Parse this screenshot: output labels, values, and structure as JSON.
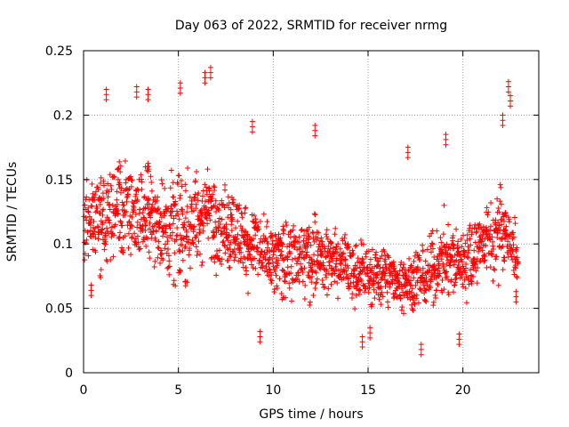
{
  "colors": {
    "points": "#ff0000",
    "axis": "#000000",
    "grid": "#a0a0a0"
  },
  "chart_data": {
    "type": "scatter",
    "marker": "plus",
    "title": "Day 063 of 2022, SRMTID for receiver nrmg",
    "xlabel": "GPS time / hours",
    "ylabel": "SRMTID / TECUs",
    "xlim": [
      0,
      24
    ],
    "ylim": [
      0,
      0.25
    ],
    "x_ticks": [
      0,
      5,
      10,
      15,
      20
    ],
    "x_tick_labels": [
      "0",
      "5",
      "10",
      "15",
      "20"
    ],
    "y_ticks": [
      0,
      0.05,
      0.1,
      0.15,
      0.2,
      0.25
    ],
    "y_tick_labels": [
      "0",
      "0.05",
      "0.1",
      "0.15",
      "0.2",
      "0.25"
    ],
    "grid": true,
    "legend": "none",
    "series": [
      {
        "name": "SRMTID",
        "envelope_hours": [
          0,
          1,
          2,
          3,
          4,
          5,
          6,
          7,
          8,
          9,
          10,
          11,
          12,
          13,
          14,
          15,
          16,
          17,
          18,
          19,
          20,
          21,
          22,
          22.9
        ],
        "envelope_center": [
          0.118,
          0.12,
          0.128,
          0.125,
          0.115,
          0.11,
          0.12,
          0.12,
          0.11,
          0.1,
          0.085,
          0.088,
          0.09,
          0.088,
          0.082,
          0.075,
          0.075,
          0.072,
          0.075,
          0.09,
          0.085,
          0.1,
          0.11,
          0.09
        ],
        "envelope_spread": [
          0.035,
          0.04,
          0.045,
          0.045,
          0.04,
          0.045,
          0.045,
          0.04,
          0.035,
          0.035,
          0.03,
          0.03,
          0.032,
          0.03,
          0.028,
          0.025,
          0.025,
          0.025,
          0.025,
          0.035,
          0.03,
          0.03,
          0.04,
          0.02
        ],
        "highlights": [
          {
            "x": 1.2,
            "y": 0.22
          },
          {
            "x": 2.8,
            "y": 0.222
          },
          {
            "x": 3.4,
            "y": 0.22
          },
          {
            "x": 5.1,
            "y": 0.225
          },
          {
            "x": 6.4,
            "y": 0.233
          },
          {
            "x": 6.7,
            "y": 0.237
          },
          {
            "x": 8.9,
            "y": 0.195
          },
          {
            "x": 12.2,
            "y": 0.192
          },
          {
            "x": 17.1,
            "y": 0.175
          },
          {
            "x": 19.1,
            "y": 0.185
          },
          {
            "x": 22.1,
            "y": 0.2
          },
          {
            "x": 22.4,
            "y": 0.226
          },
          {
            "x": 22.5,
            "y": 0.215
          },
          {
            "x": 9.3,
            "y": 0.032
          },
          {
            "x": 14.7,
            "y": 0.028
          },
          {
            "x": 15.1,
            "y": 0.035
          },
          {
            "x": 17.8,
            "y": 0.022
          },
          {
            "x": 19.8,
            "y": 0.03
          },
          {
            "x": 0.4,
            "y": 0.068
          },
          {
            "x": 22.8,
            "y": 0.063
          }
        ]
      }
    ]
  }
}
